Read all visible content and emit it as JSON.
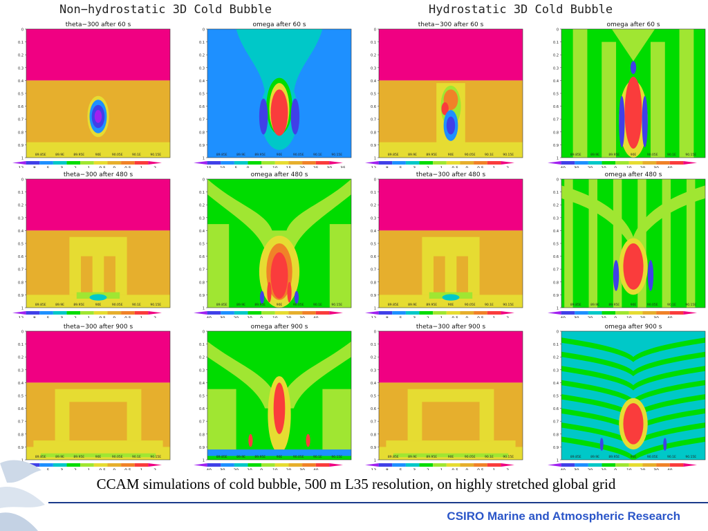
{
  "group_titles": {
    "left": "Non−hydrostatic  3D  Cold  Bubble",
    "right": "Hydrostatic  3D  Cold  Bubble"
  },
  "caption": "CCAM simulations of cold bubble, 500 m L35 resolution, on highly stretched global grid",
  "footer": "CSIRO Marine and Atmospheric Research",
  "y_ticks": [
    "0",
    "0.1",
    "0.2",
    "0.3",
    "0.4",
    "0.5",
    "0.6",
    "0.7",
    "0.8",
    "0.9",
    "1"
  ],
  "x_ticks": [
    "89.85E",
    "89.9E",
    "89.95E",
    "90E",
    "90.05E",
    "90.1E",
    "90.15E"
  ],
  "colorbars": {
    "theta": {
      "labels": [
        "−12",
        "−8",
        "−5",
        "−3",
        "−2",
        "−1",
        "−0.5",
        "0",
        "0.5",
        "1",
        "2"
      ],
      "colors": [
        "#a020f0",
        "#4040e8",
        "#1e90ff",
        "#00c8c8",
        "#00dc00",
        "#a0e632",
        "#e6dc32",
        "#e6af2d",
        "#f08228",
        "#fa3c3c",
        "#f00082"
      ]
    },
    "omega_wide": {
      "labels": [
        "−15",
        "−10",
        "−5",
        "0",
        "5",
        "10",
        "15",
        "20",
        "25",
        "30",
        "35",
        "40"
      ],
      "colors": [
        "#a020f0",
        "#4040e8",
        "#1e90ff",
        "#00c8c8",
        "#00dc00",
        "#a0e632",
        "#e6dc32",
        "#e6af2d",
        "#f08228",
        "#fa3c3c",
        "#f00082"
      ]
    },
    "omega": {
      "labels": [
        "−40",
        "−30",
        "−20",
        "−10",
        "0",
        "10",
        "20",
        "30",
        "40"
      ],
      "colors": [
        "#a020f0",
        "#4040e8",
        "#1e90ff",
        "#00c8c8",
        "#00dc00",
        "#a0e632",
        "#e6dc32",
        "#e6af2d",
        "#f08228",
        "#fa3c3c",
        "#f00082"
      ]
    }
  },
  "chart_data": [
    {
      "type": "heatmap",
      "title": "theta−300  after  60  s",
      "colorbar": "theta",
      "pattern": "theta-60"
    },
    {
      "type": "heatmap",
      "title": "omega  after  60  s",
      "colorbar": "omega_wide",
      "pattern": "omega-nh-60"
    },
    {
      "type": "heatmap",
      "title": "theta−300  after  60  s",
      "colorbar": "theta",
      "pattern": "theta-h-60"
    },
    {
      "type": "heatmap",
      "title": "omega  after  60  s",
      "colorbar": "omega",
      "pattern": "omega-h-60"
    },
    {
      "type": "heatmap",
      "title": "theta−300  after  480  s",
      "colorbar": "theta",
      "pattern": "theta-480"
    },
    {
      "type": "heatmap",
      "title": "omega  after  480  s",
      "colorbar": "omega",
      "pattern": "omega-nh-480"
    },
    {
      "type": "heatmap",
      "title": "theta−300  after  480  s",
      "colorbar": "theta",
      "pattern": "theta-480"
    },
    {
      "type": "heatmap",
      "title": "omega  after  480  s",
      "colorbar": "omega",
      "pattern": "omega-h-480"
    },
    {
      "type": "heatmap",
      "title": "theta−300  after  900  s",
      "colorbar": "theta",
      "pattern": "theta-900"
    },
    {
      "type": "heatmap",
      "title": "omega  after  900  s",
      "colorbar": "omega",
      "pattern": "omega-nh-900"
    },
    {
      "type": "heatmap",
      "title": "theta−300  after  900  s",
      "colorbar": "theta",
      "pattern": "theta-900"
    },
    {
      "type": "heatmap",
      "title": "omega  after  900  s",
      "colorbar": "omega",
      "pattern": "omega-h-900"
    }
  ]
}
